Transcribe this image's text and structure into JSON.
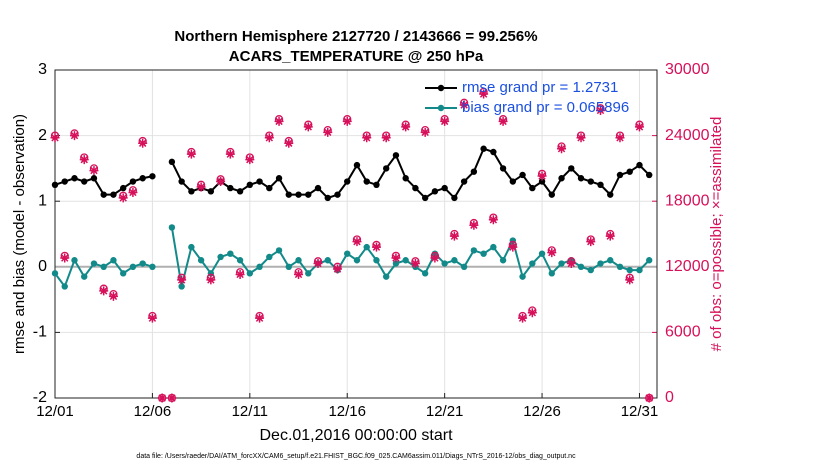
{
  "chart_data": {
    "type": "line",
    "title": "Northern Hemisphere 2127720 / 2143666 = 99.256%",
    "subtitle": "ACARS_TEMPERATURE @ 250 hPa",
    "xlabel": "Dec.01,2016 00:00:00 start",
    "ylabel": "rmse and bias (model - observation)",
    "y2label": "# of obs: o=possible; ×=assimilated",
    "footnote": "data file: /Users/raeder/DAI/ATM_forcXX/CAM6_setup/f.e21.FHIST_BGC.f09_025.CAM6assim.011/Diags_NTrS_2016-12/obs_diag_output.nc",
    "x": [
      1,
      1.5,
      2,
      2.5,
      3,
      3.5,
      4,
      4.5,
      5,
      5.5,
      6,
      6.5,
      7,
      7.5,
      8,
      8.5,
      9,
      9.5,
      10,
      10.5,
      11,
      11.5,
      12,
      12.5,
      13,
      13.5,
      14,
      14.5,
      15,
      15.5,
      16,
      16.5,
      17,
      17.5,
      18,
      18.5,
      19,
      19.5,
      20,
      20.5,
      21,
      21.5,
      22,
      22.5,
      23,
      23.5,
      24,
      24.5,
      25,
      25.5,
      26,
      26.5,
      27,
      27.5,
      28,
      28.5,
      29,
      29.5,
      30,
      30.5,
      31,
      31.5
    ],
    "series": [
      {
        "name": "rmse grand pr = 1.2731",
        "color": "#000000",
        "marker": "dot",
        "axis": "y",
        "values": [
          1.25,
          1.3,
          1.35,
          1.3,
          1.35,
          1.1,
          1.1,
          1.2,
          1.3,
          1.35,
          1.38,
          null,
          1.6,
          1.3,
          1.15,
          1.2,
          1.15,
          1.3,
          1.2,
          1.15,
          1.25,
          1.3,
          1.2,
          1.35,
          1.1,
          1.1,
          1.1,
          1.2,
          1.05,
          1.1,
          1.3,
          1.55,
          1.3,
          1.25,
          1.5,
          1.7,
          1.35,
          1.2,
          1.05,
          1.15,
          1.2,
          1.05,
          1.3,
          1.45,
          1.8,
          1.75,
          1.5,
          1.3,
          1.4,
          1.2,
          1.3,
          1.1,
          1.35,
          1.5,
          1.35,
          1.3,
          1.25,
          1.1,
          1.4,
          1.45,
          1.55,
          1.4
        ]
      },
      {
        "name": "bias grand pr = 0.065896",
        "color": "#138a8a",
        "marker": "dot",
        "axis": "y",
        "values": [
          -0.1,
          -0.3,
          0.1,
          -0.15,
          0.05,
          0.0,
          0.1,
          -0.1,
          0.0,
          0.05,
          0.0,
          null,
          0.6,
          -0.3,
          0.3,
          0.1,
          -0.1,
          0.15,
          0.2,
          0.1,
          -0.1,
          0.0,
          0.15,
          0.25,
          0.0,
          0.1,
          -0.1,
          0.05,
          0.1,
          -0.05,
          0.2,
          0.1,
          0.3,
          0.1,
          -0.15,
          0.05,
          0.1,
          0.0,
          -0.1,
          0.2,
          0.05,
          0.1,
          0.0,
          0.25,
          0.2,
          0.3,
          0.1,
          0.4,
          -0.15,
          0.05,
          0.2,
          -0.1,
          0.05,
          0.1,
          0.0,
          -0.05,
          0.05,
          0.1,
          0.0,
          -0.05,
          -0.05,
          0.1
        ]
      },
      {
        "color": "#d6105a",
        "marker": "o",
        "axis": "y2",
        "values": [
          24000,
          13000,
          24200,
          22000,
          21000,
          10000,
          9500,
          18500,
          19000,
          23500,
          7500,
          0,
          0,
          11000,
          22500,
          19500,
          11000,
          20000,
          22500,
          11500,
          22000,
          7500,
          24000,
          25500,
          23500,
          11500,
          25000,
          12500,
          24500,
          12000,
          25500,
          14500,
          24000,
          14000,
          24000,
          13000,
          25000,
          12500,
          24500,
          13000,
          25500,
          15000,
          27000,
          16000,
          28000,
          16500,
          25500,
          14000,
          7500,
          8000,
          20500,
          13500,
          23000,
          12500,
          24000,
          14500,
          26500,
          15000,
          24000,
          11000,
          25000,
          0
        ]
      },
      {
        "color": "#d6105a",
        "marker": "x",
        "axis": "y2",
        "values": [
          23800,
          12800,
          24000,
          21800,
          20800,
          9800,
          9300,
          18300,
          18800,
          23300,
          7300,
          0,
          0,
          10800,
          22300,
          19300,
          10800,
          19800,
          22300,
          11300,
          21800,
          7300,
          23800,
          25300,
          23300,
          11300,
          24800,
          12300,
          24300,
          11800,
          25300,
          14300,
          23800,
          13800,
          23800,
          12800,
          24800,
          12300,
          24300,
          12800,
          25300,
          14800,
          26800,
          15800,
          27800,
          16300,
          25300,
          13800,
          7300,
          7800,
          20300,
          13300,
          22800,
          12300,
          23800,
          14300,
          26300,
          14800,
          23800,
          10800,
          24800,
          0
        ]
      }
    ],
    "xlim": [
      1,
      31.9
    ],
    "xticks": [
      {
        "value": 1,
        "label": "12/01"
      },
      {
        "value": 6,
        "label": "12/06"
      },
      {
        "value": 11,
        "label": "12/11"
      },
      {
        "value": 16,
        "label": "12/16"
      },
      {
        "value": 21,
        "label": "12/21"
      },
      {
        "value": 26,
        "label": "12/26"
      },
      {
        "value": 31,
        "label": "12/31"
      }
    ],
    "ylim": [
      -2,
      3
    ],
    "yticks": [
      -2,
      -1,
      0,
      1,
      2,
      3
    ],
    "y2lim": [
      0,
      30000
    ],
    "y2ticks": [
      0,
      6000,
      12000,
      18000,
      24000,
      30000
    ],
    "grid": true,
    "legend": "northeast",
    "reference_line": 0
  }
}
